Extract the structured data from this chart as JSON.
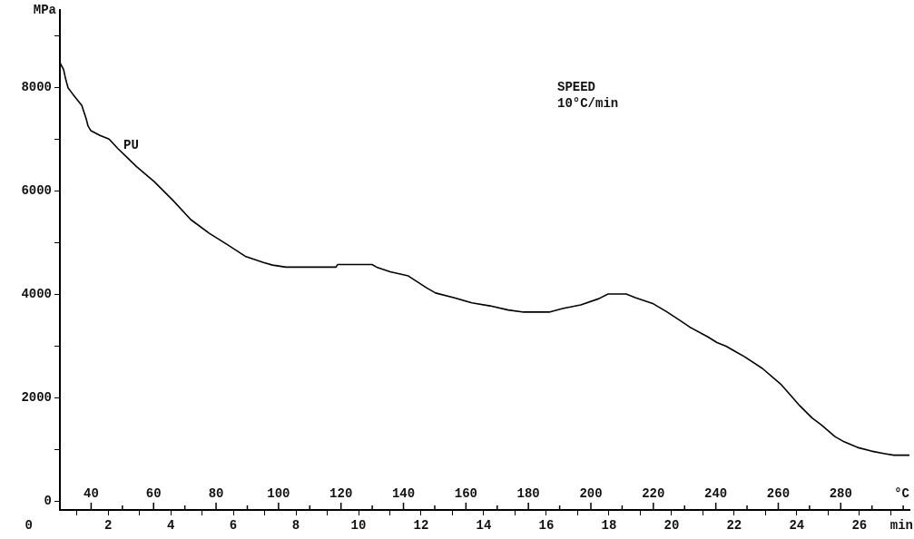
{
  "chart_data": {
    "type": "line",
    "ylabel": "MPa",
    "xlabel": "min",
    "x2label": "°C",
    "x": [
      0.46,
      0.58,
      0.64,
      0.72,
      0.87,
      1.16,
      1.3,
      1.36,
      1.45,
      1.74,
      2.03,
      2.32,
      2.61,
      2.9,
      3.48,
      4.06,
      4.64,
      5.22,
      5.8,
      6.38,
      6.96,
      7.25,
      7.68,
      9.28,
      9.33,
      10.43,
      10.58,
      11.01,
      11.59,
      12.17,
      12.46,
      13.04,
      13.62,
      14.2,
      14.78,
      15.28,
      16.09,
      16.52,
      17.1,
      17.68,
      17.97,
      18.55,
      18.84,
      19.42,
      19.86,
      20.29,
      20.58,
      21.16,
      21.45,
      21.74,
      22.03,
      22.32,
      22.9,
      23.48,
      24.06,
      24.49,
      24.78,
      25.22,
      25.51,
      25.94,
      26.38,
      26.81,
      27.1,
      27.6
    ],
    "series": [
      {
        "color": "#000000",
        "values": [
          8490,
          8350,
          8180,
          8000,
          7880,
          7660,
          7400,
          7260,
          7170,
          7080,
          7010,
          6820,
          6650,
          6480,
          6180,
          5830,
          5450,
          5190,
          4970,
          4740,
          4620,
          4570,
          4530,
          4530,
          4580,
          4580,
          4530,
          4440,
          4360,
          4130,
          4030,
          3940,
          3840,
          3780,
          3700,
          3660,
          3660,
          3730,
          3800,
          3920,
          4010,
          4010,
          3940,
          3820,
          3660,
          3490,
          3370,
          3180,
          3070,
          3000,
          2900,
          2800,
          2570,
          2270,
          1870,
          1610,
          1480,
          1250,
          1150,
          1040,
          970,
          920,
          890,
          890
        ]
      }
    ],
    "xlim": [
      0.46,
      27.6
    ],
    "xticks": [
      {
        "value": 1,
        "label": null
      },
      2,
      {
        "value": 3,
        "label": null
      },
      4,
      {
        "value": 5,
        "label": null
      },
      6,
      {
        "value": 7,
        "label": null
      },
      8,
      {
        "value": 9,
        "label": null
      },
      10,
      {
        "value": 11,
        "label": null
      },
      12,
      {
        "value": 13,
        "label": null
      },
      14,
      {
        "value": 15,
        "label": null
      },
      16,
      {
        "value": 17,
        "label": null
      },
      18,
      {
        "value": 19,
        "label": null
      },
      20,
      {
        "value": 21,
        "label": null
      },
      22,
      {
        "value": 23,
        "label": null
      },
      24,
      {
        "value": 25,
        "label": null
      },
      26,
      {
        "value": 27,
        "label": null
      }
    ],
    "x2lim": [
      30,
      302
    ],
    "x2ticks": [
      40,
      {
        "value": 50,
        "label": null
      },
      60,
      {
        "value": 70,
        "label": null
      },
      80,
      {
        "value": 90,
        "label": null
      },
      100,
      {
        "value": 110,
        "label": null
      },
      120,
      {
        "value": 130,
        "label": null
      },
      140,
      {
        "value": 150,
        "label": null
      },
      160,
      {
        "value": 170,
        "label": null
      },
      180,
      {
        "value": 190,
        "label": null
      },
      200,
      {
        "value": 210,
        "label": null
      },
      220,
      {
        "value": 230,
        "label": null
      },
      240,
      {
        "value": 250,
        "label": null
      },
      260,
      {
        "value": 270,
        "label": null
      },
      280,
      {
        "value": 290,
        "label": null
      },
      {
        "value": 300,
        "label": null
      }
    ],
    "ylim": [
      -170,
      9500
    ],
    "yticks": [
      0,
      {
        "value": 1000,
        "label": null
      },
      2000,
      {
        "value": 3000,
        "label": null
      },
      4000,
      {
        "value": 5000,
        "label": null
      },
      6000,
      {
        "value": 7000,
        "label": null
      },
      8000,
      {
        "value": 9000,
        "label": null
      }
    ],
    "annotations": [
      "PU",
      "SPEED",
      "10°C/min",
      "0"
    ],
    "grid": false,
    "legend": false,
    "marker": "none",
    "line_style": "solid"
  }
}
